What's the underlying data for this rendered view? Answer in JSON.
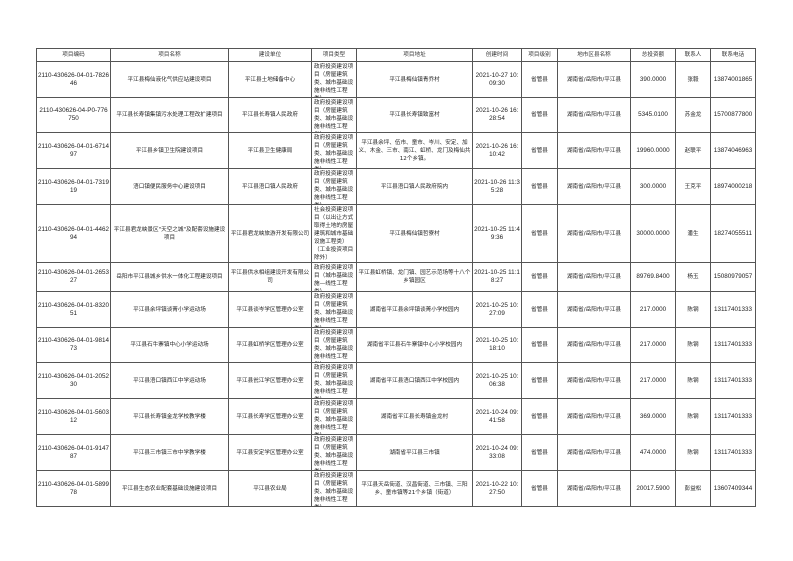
{
  "headers": [
    "项目编码",
    "项目名称",
    "建设单位",
    "项目类型",
    "项目地址",
    "创建时间",
    "项目级别",
    "地市区县名称",
    "总投资额",
    "联系人",
    "联系电话"
  ],
  "rows": [
    {
      "code": "2110-430626-04-01-782646",
      "name": "平江县梅仙液化气供应站建设项目",
      "unit": "平江县土地储备中心",
      "type": "政府投资建设项目（房屋建筑类、城市基础设施非线性工程类）",
      "address": "平江县梅仙镇青乔村",
      "created": "2021-10-27 10:09:30",
      "level": "省管县",
      "region": "湖南省/岳阳市/平江县",
      "investment": "390.0000",
      "contact": "张毅",
      "phone": "13874001865"
    },
    {
      "code": "2110-430626-04-P0-776750",
      "name": "平江县长寿镇集镇污水处理工程改扩建项目",
      "unit": "平江县长寿镇人民政府",
      "type": "政府投资建设项目（房屋建筑类、城市基础设施非线性工程类）",
      "address": "平江县长寿镇致富村",
      "created": "2021-10-26 16:28:54",
      "level": "省管县",
      "region": "湖南省/岳阳市/平江县",
      "investment": "5345.0100",
      "contact": "苏金龙",
      "phone": "15700877800"
    },
    {
      "code": "2110-430626-04-01-671497",
      "name": "平江县乡镇卫生院建设项目",
      "unit": "平江县卫生健康局",
      "type": "政府投资建设项目（房屋建筑类、城市基础设施非线性工程类）",
      "address": "平江县余坪、伍市、童市、岑川、安定、加义、木金、三市、南江、虹桥、龙门及梅仙共12个乡镇。",
      "created": "2021-10-26 16:10:42",
      "level": "省管县",
      "region": "湖南省/岳阳市/平江县",
      "investment": "19960.0000",
      "contact": "赵联平",
      "phone": "13874046963"
    },
    {
      "code": "2110-430626-04-01-731919",
      "name": "浯口镇便民服务中心建设项目",
      "unit": "平江县浯口镇人民政府",
      "type": "政府投资建设项目（房屋建筑类、城市基础设施非线性工程类）",
      "address": "平江县浯口镇人民政府院内",
      "created": "2021-10-26 11:35:28",
      "level": "省管县",
      "region": "湖南省/岳阳市/平江县",
      "investment": "300.0000",
      "contact": "王克平",
      "phone": "18974000218"
    },
    {
      "code": "2110-430626-04-01-446294",
      "name": "平江县君龙峡景区\"天空之城\"及配套设施建设项目",
      "unit": "平江县君龙峡旅游开发有限公司",
      "type": "社会投资建设项目（以出让方式取得土地的房屋建筑和城市基础设施工程类）（工业投资项目除外）",
      "address": "平江县梅仙镇哲寮村",
      "created": "2021-10-25 11:49:36",
      "level": "省管县",
      "region": "湖南省/岳阳市/平江县",
      "investment": "30000.0000",
      "contact": "潘生",
      "phone": "18274055511"
    },
    {
      "code": "2110-430626-04-01-265327",
      "name": "岳阳市平江县城乡供水一体化工程建设项目",
      "unit": "平江县供水相组建设开发有限公司",
      "type": "政府投资建设项目（城市基础设施—线性工程类）",
      "address": "平江县虹桥镇、龙门镇、园艺示范场等十八个乡镇园区",
      "created": "2021-10-25 11:18:27",
      "level": "省管县",
      "region": "湖南省/岳阳市/平江县",
      "investment": "89769.8400",
      "contact": "杨玉",
      "phone": "15080979057"
    },
    {
      "code": "2110-430626-04-01-832051",
      "name": "平江县余坪镇谈菁小学运动场",
      "unit": "平江县谈岑学区管理办公室",
      "type": "政府投资建设项目（房屋建筑类、城市基础设施非线性工程类）",
      "address": "湖南省平江县余坪镇谈菁小学校园内",
      "created": "2021-10-25 10:27:09",
      "level": "省管县",
      "region": "湖南省/岳阳市/平江县",
      "investment": "217.0000",
      "contact": "陈钢",
      "phone": "13117401333"
    },
    {
      "code": "2110-430626-04-01-981473",
      "name": "平江县石牛寨镇中心小学运动场",
      "unit": "平江县虹桥学区管理办公室",
      "type": "政府投资建设项目（房屋建筑类、城市基础设施非线性工程类）",
      "address": "湖南省平江县石牛寨镇中心小学校园内",
      "created": "2021-10-25 10:18:10",
      "level": "省管县",
      "region": "湖南省/岳阳市/平江县",
      "investment": "217.0000",
      "contact": "陈钢",
      "phone": "13117401333"
    },
    {
      "code": "2110-430626-04-01-205230",
      "name": "平江县浯口镇西江中学运动场",
      "unit": "平江县瓮江学区管理办公室",
      "type": "政府投资建设项目（房屋建筑类、城市基础设施非线性工程类）",
      "address": "湖南省平江县浯口镇西江中学校园内",
      "created": "2021-10-25 10:06:38",
      "level": "省管县",
      "region": "湖南省/岳阳市/平江县",
      "investment": "217.0000",
      "contact": "陈钢",
      "phone": "13117401333"
    },
    {
      "code": "2110-430626-04-01-560312",
      "name": "平江县长寿镇金龙学校教学楼",
      "unit": "平江县长寿学区管理办公室",
      "type": "政府投资建设项目（房屋建筑类、城市基础设施非线性工程类）",
      "address": "湖南省平江县长寿镇金龙村",
      "created": "2021-10-24 09:41:58",
      "level": "省管县",
      "region": "湖南省/岳阳市/平江县",
      "investment": "369.0000",
      "contact": "陈钢",
      "phone": "13117401333"
    },
    {
      "code": "2110-430626-04-01-914787",
      "name": "平江县三市镇三市中学教学楼",
      "unit": "平江县安定学区管理办公室",
      "type": "政府投资建设项目（房屋建筑类、城市基础设施非线性工程类）",
      "address": "湖南省平江县三市镇",
      "created": "2021-10-24 09:33:08",
      "level": "省管县",
      "region": "湖南省/岳阳市/平江县",
      "investment": "474.0000",
      "contact": "陈钢",
      "phone": "13117401333"
    },
    {
      "code": "2110-430626-04-01-589978",
      "name": "平江县生态农业配套基础设施建设项目",
      "unit": "平江县农业局",
      "type": "政府投资建设项目（房屋建筑类、城市基础设施非线性工程类）",
      "address": "平江县天岳街道、汉昌街道、三市镇、三阳乡、童市镇等21个乡镇（街道）",
      "created": "2021-10-22 10:27:50",
      "level": "省管县",
      "region": "湖南省/岳阳市/平江县",
      "investment": "20017.5900",
      "contact": "彭益松",
      "phone": "13607409344"
    }
  ]
}
